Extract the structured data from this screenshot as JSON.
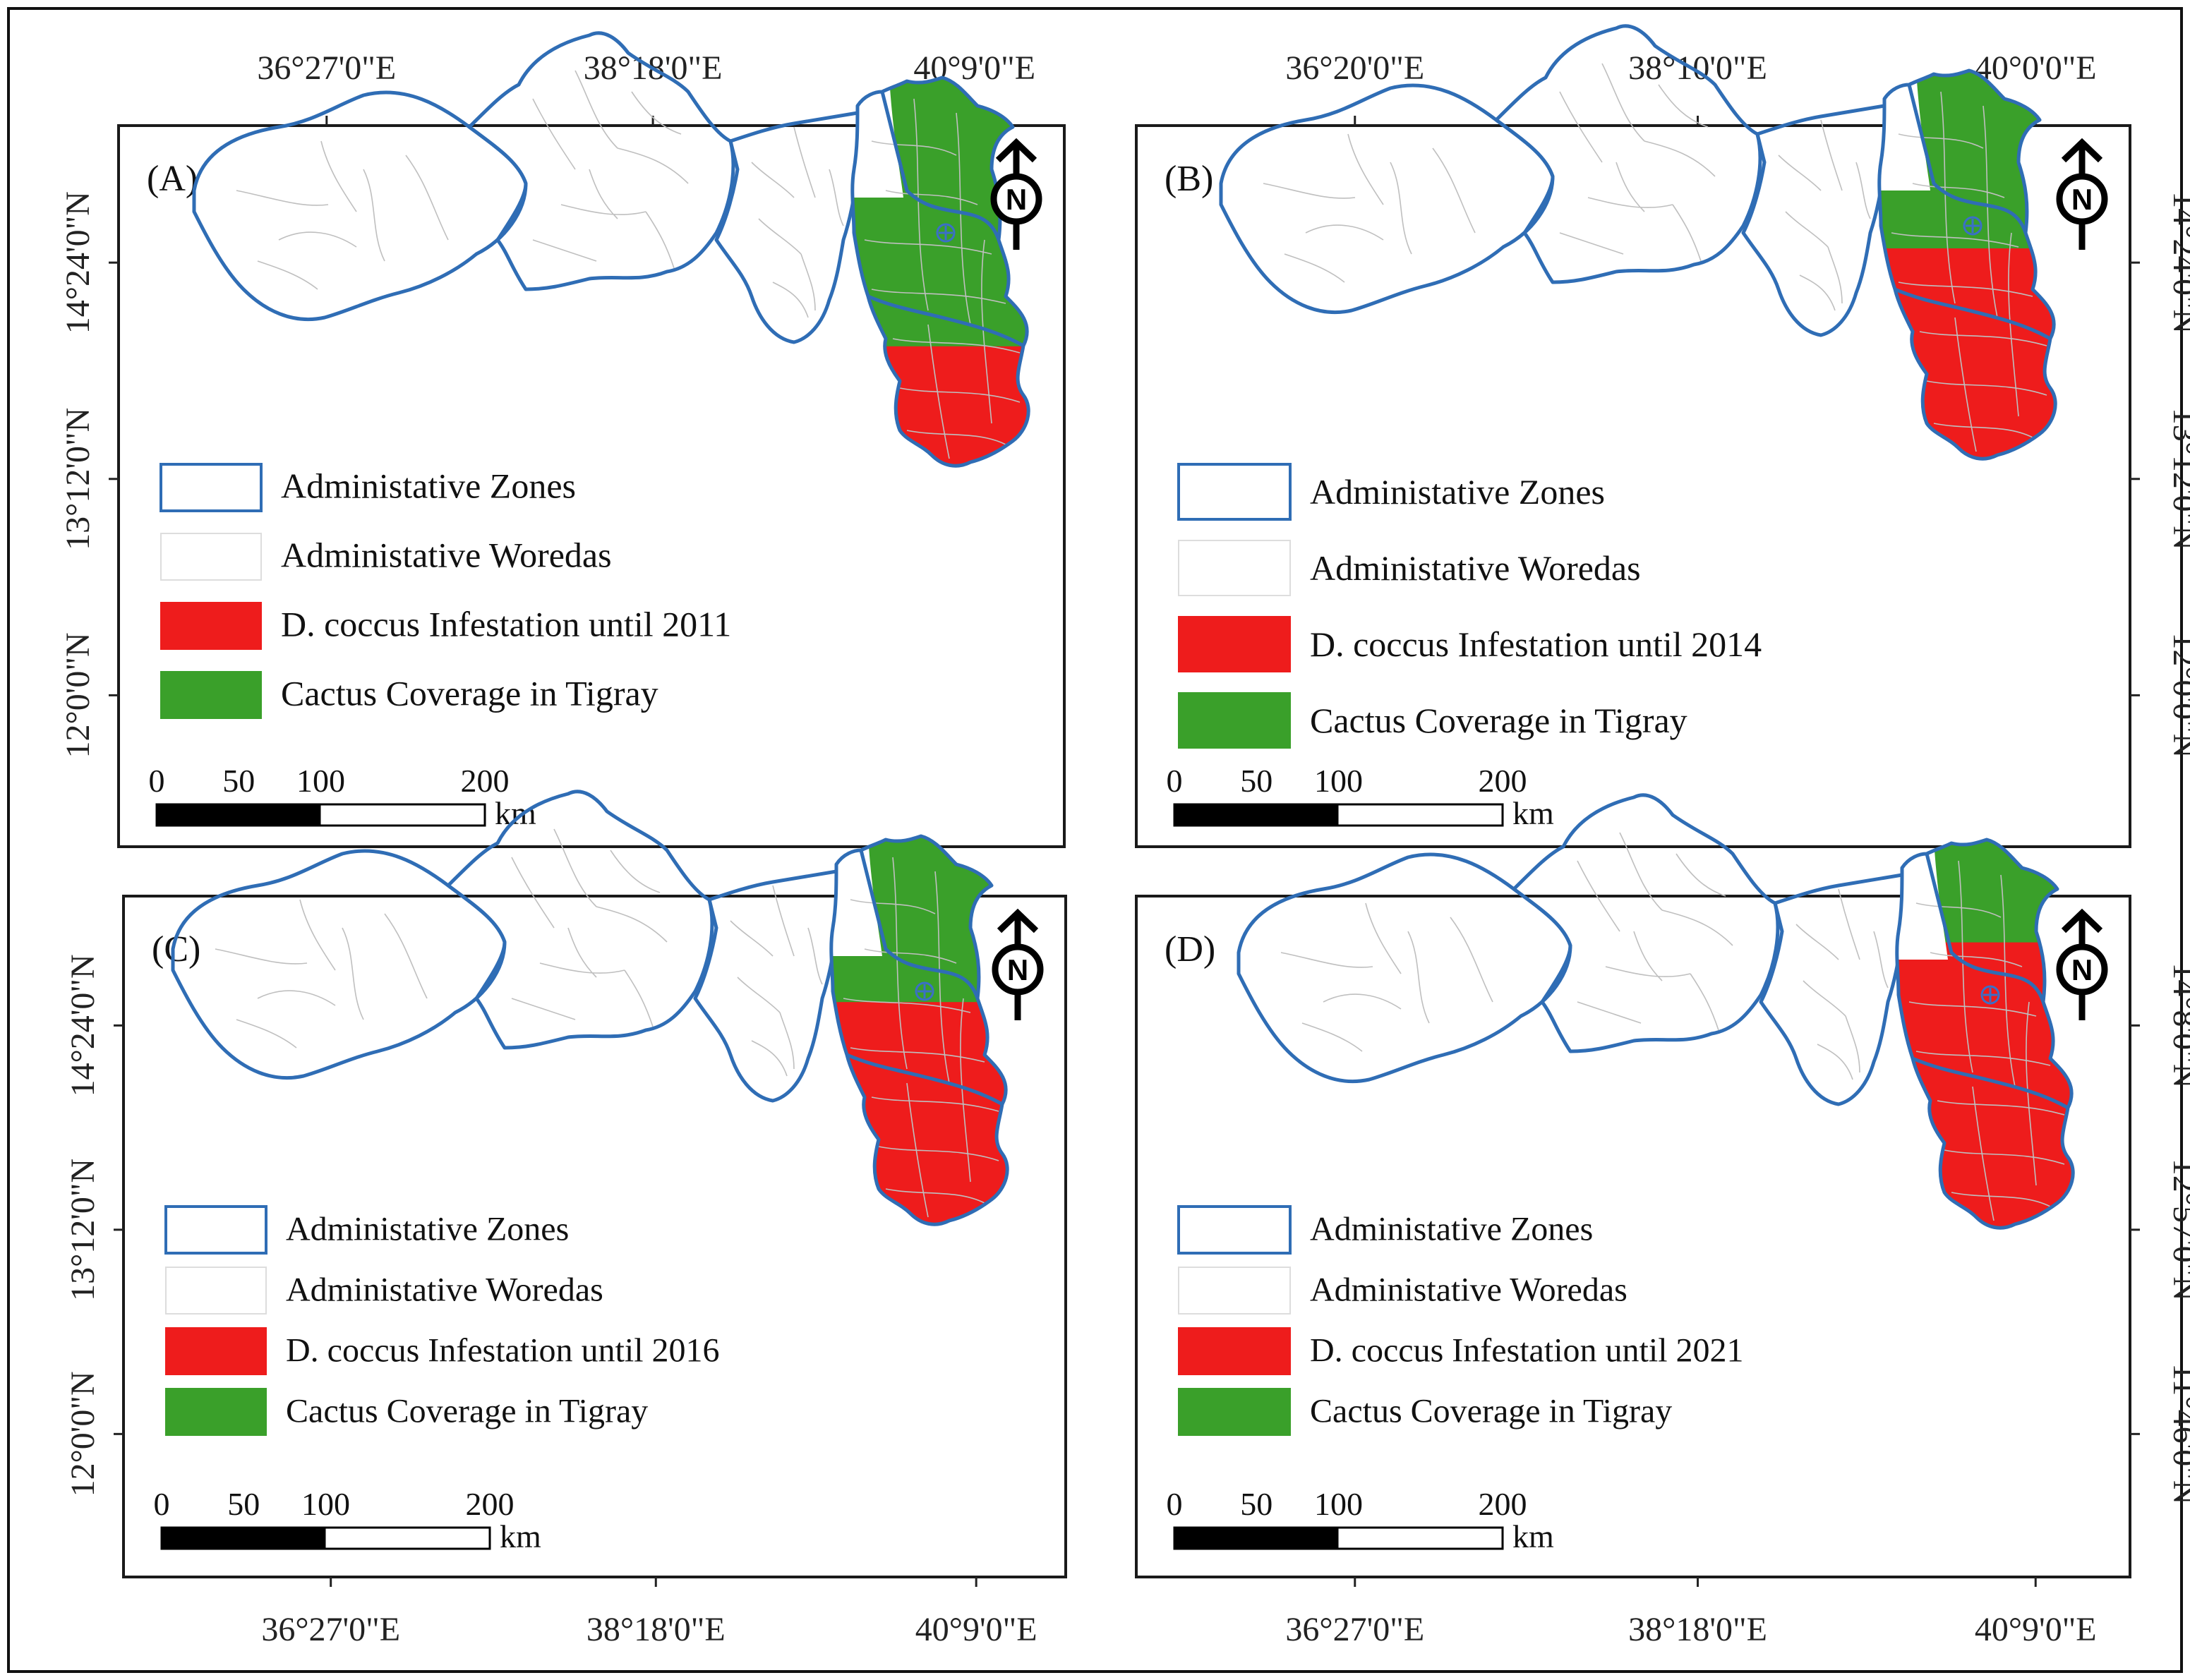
{
  "panels": [
    {
      "label": "(A)",
      "top_labels": [
        "36°27'0\"E",
        "38°18'0\"E",
        "40°9'0\"E"
      ],
      "side_labels": [
        "14°24'0\"N",
        "13°12'0\"N",
        "12°0'0\"N"
      ],
      "infestation_share": 0.32,
      "legend": [
        "Administative Zones",
        "Administative Woredas",
        "D. coccus Infestation until 2011",
        "Cactus Coverage in Tigray"
      ],
      "scale": {
        "ticks": [
          "0",
          "50",
          "100",
          "200"
        ],
        "unit": "km"
      }
    },
    {
      "label": "(B)",
      "top_labels": [
        "36°20'0\"E",
        "38°10'0\"E",
        "40°0'0\"E"
      ],
      "side_labels": [
        "14°24'0\"N",
        "13°12'0\"N",
        "12°0'0\"N"
      ],
      "infestation_share": 0.55,
      "legend": [
        "Administative Zones",
        "Administative Woredas",
        "D. coccus Infestation until 2014",
        "Cactus Coverage in Tigray"
      ],
      "scale": {
        "ticks": [
          "0",
          "50",
          "100",
          "200"
        ],
        "unit": "km"
      }
    },
    {
      "label": "(C)",
      "bottom_labels": [
        "36°27'0\"E",
        "38°18'0\"E",
        "40°9'0\"E"
      ],
      "side_labels": [
        "14°24'0\"N",
        "13°12'0\"N",
        "12°0'0\"N"
      ],
      "infestation_share": 0.58,
      "legend": [
        "Administative Zones",
        "Administative Woredas",
        "D. coccus Infestation until 2016",
        "Cactus Coverage in Tigray"
      ],
      "scale": {
        "ticks": [
          "0",
          "50",
          "100",
          "200"
        ],
        "unit": "km"
      }
    },
    {
      "label": "(D)",
      "bottom_labels": [
        "36°27'0\"E",
        "38°18'0\"E",
        "40°9'0\"E"
      ],
      "side_labels": [
        "14°8'0\"N",
        "12°57'0\"N",
        "11°46'0\"N"
      ],
      "infestation_share": 0.74,
      "legend": [
        "Administative Zones",
        "Administative Woredas",
        "D. coccus Infestation until  2021",
        "Cactus Coverage in Tigray"
      ],
      "scale": {
        "ticks": [
          "0",
          "50",
          "100",
          "200"
        ],
        "unit": "km"
      }
    }
  ],
  "colors": {
    "zone_border": "#2f6db5",
    "woreda_border": "#bfbfbf",
    "infestation": "#ee1c1c",
    "cactus": "#3aa02a",
    "north_arrow": "north-arrow-icon"
  }
}
